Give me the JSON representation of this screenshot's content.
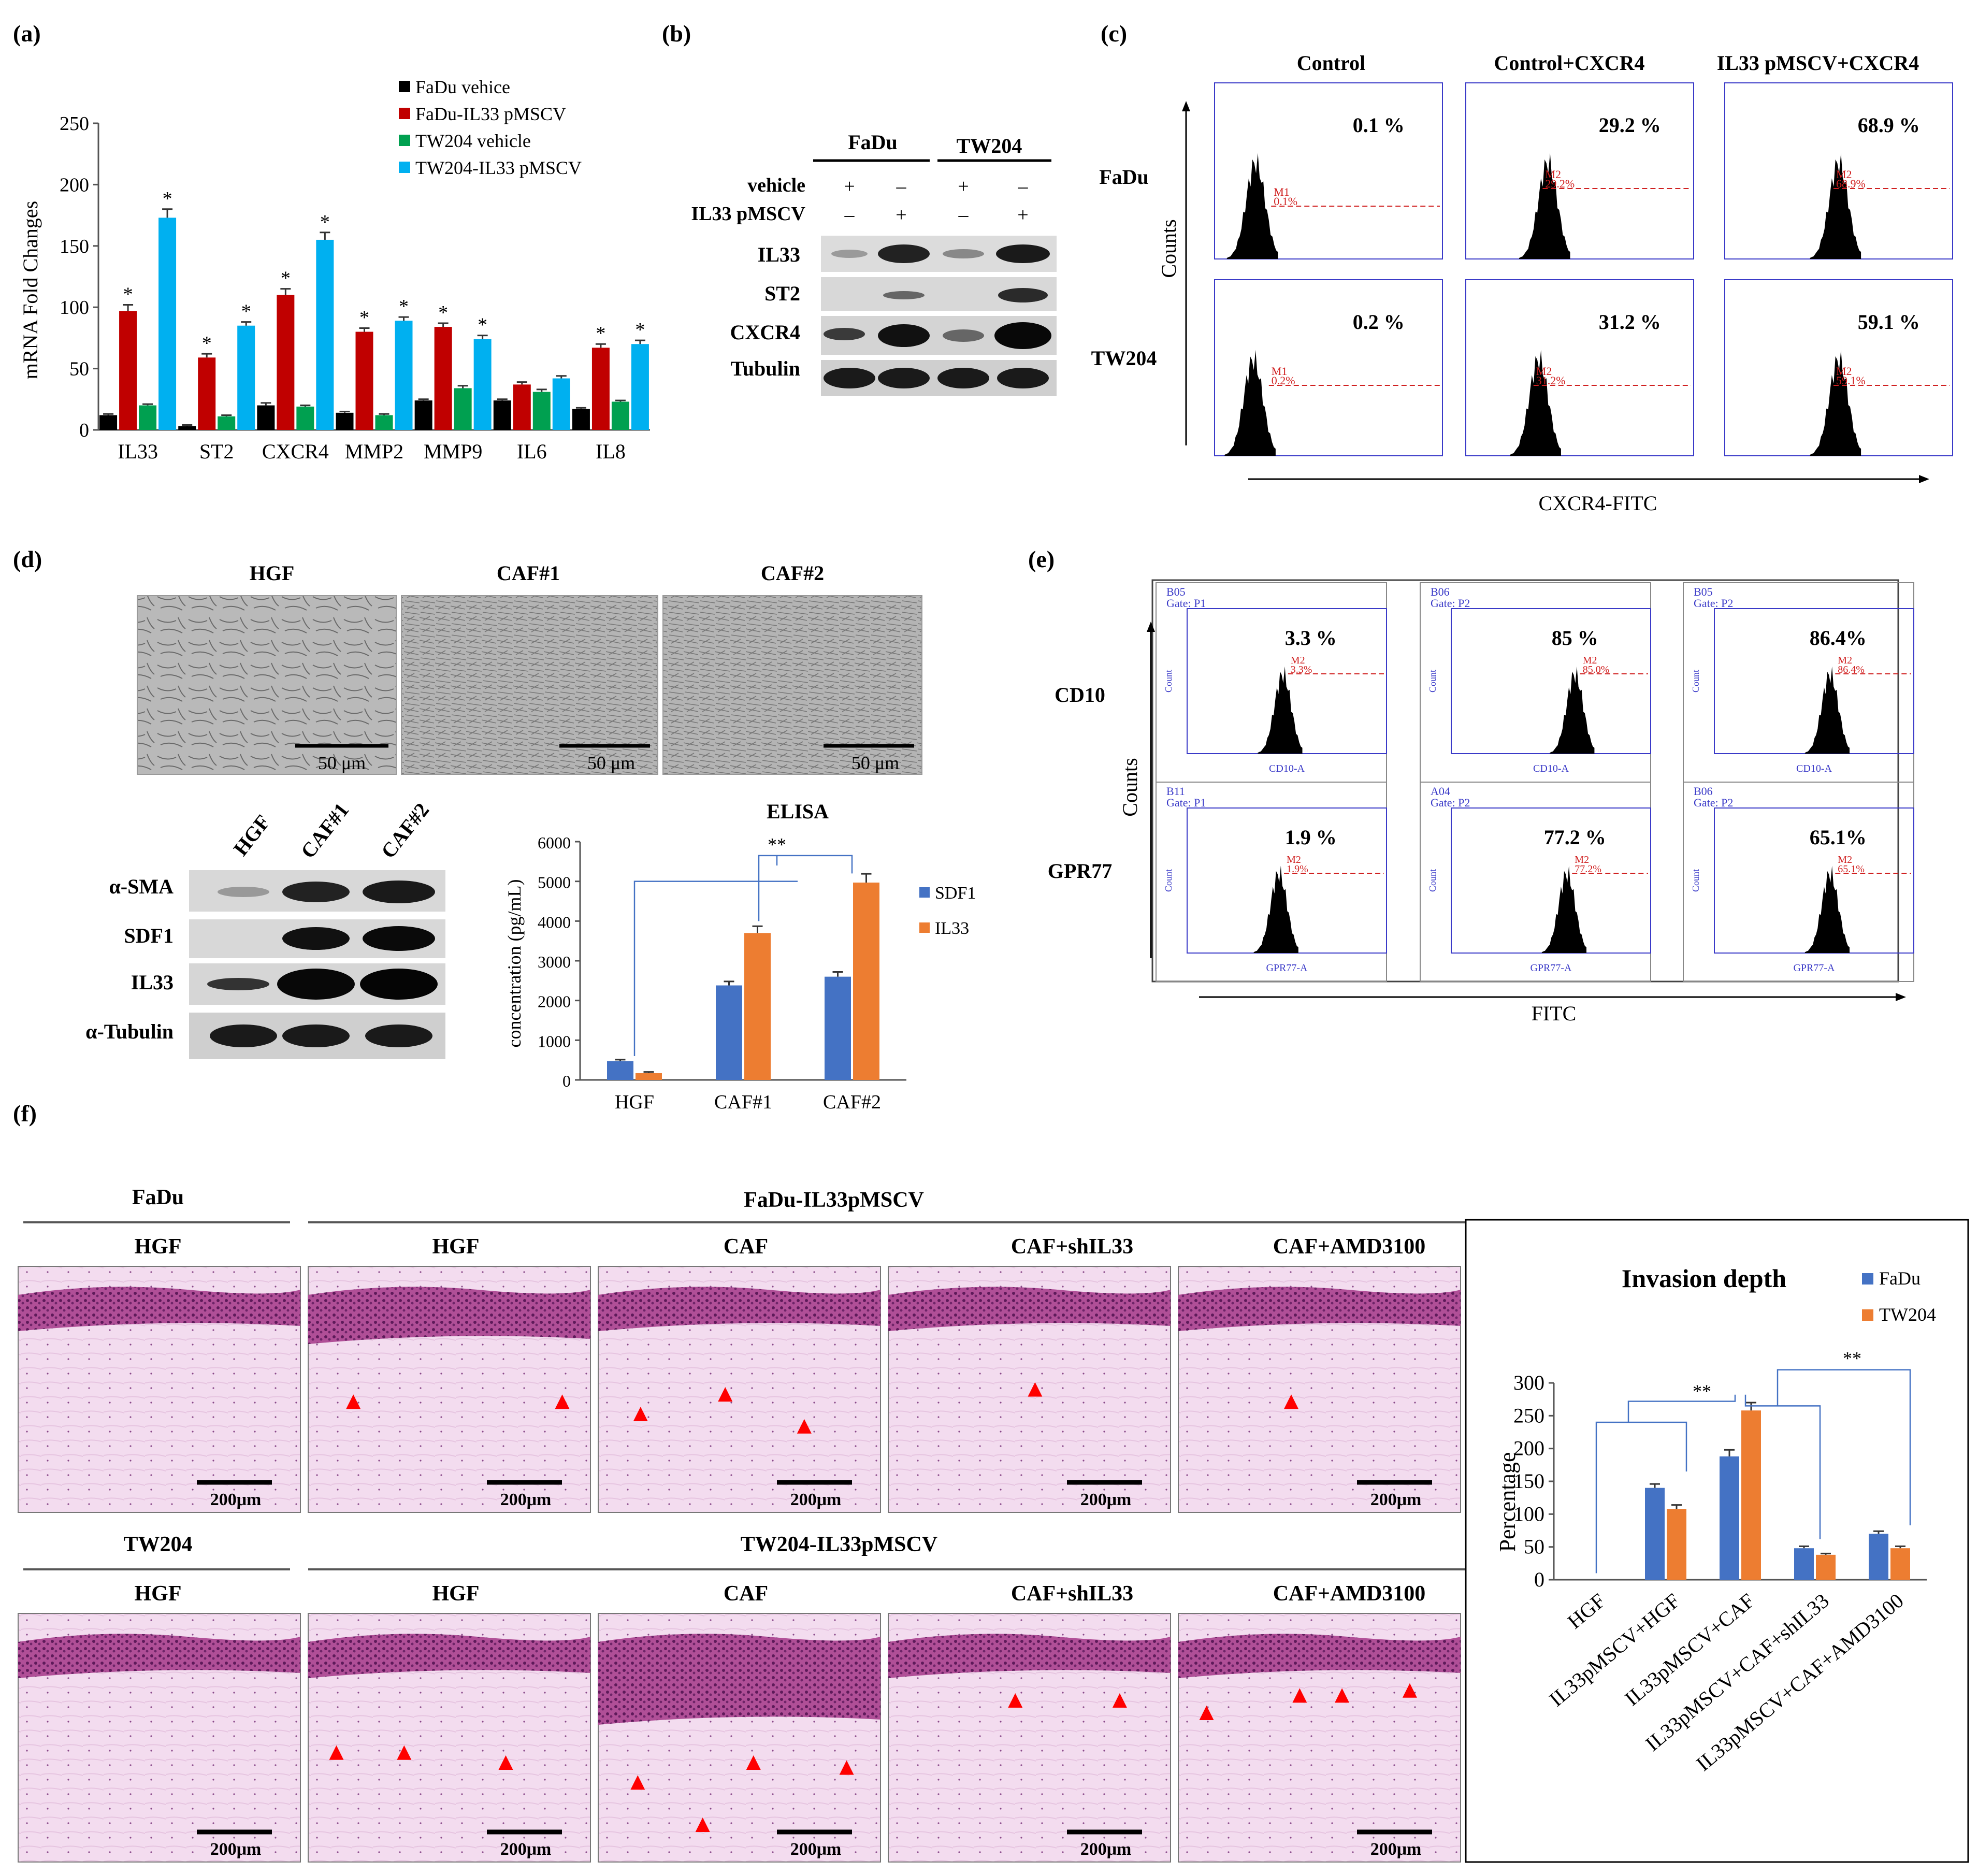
{
  "panel_labels": {
    "a": "(a)",
    "b": "(b)",
    "c": "(c)",
    "d": "(d)",
    "e": "(e)",
    "f": "(f)"
  },
  "chart_data": [
    {
      "id": "a",
      "type": "bar",
      "ylabel": "mRNA Fold Changes",
      "ylim": [
        0,
        250
      ],
      "yticks": [
        0,
        50,
        100,
        150,
        200,
        250
      ],
      "categories": [
        "IL33",
        "ST2",
        "CXCR4",
        "MMP2",
        "MMP9",
        "IL6",
        "IL8"
      ],
      "series": [
        {
          "name": "FaDu vehice",
          "color": "#000000",
          "values": [
            12,
            3,
            20,
            14,
            24,
            24,
            17
          ],
          "errors": [
            1,
            1,
            2,
            1,
            1,
            1,
            1
          ],
          "sig": [
            false,
            false,
            false,
            false,
            false,
            false,
            false
          ]
        },
        {
          "name": "FaDu-IL33 pMSCV",
          "color": "#c00000",
          "values": [
            97,
            59,
            110,
            80,
            84,
            37,
            67
          ],
          "errors": [
            5,
            3,
            5,
            3,
            3,
            2,
            3
          ],
          "sig": [
            true,
            true,
            true,
            true,
            true,
            false,
            true
          ]
        },
        {
          "name": "TW204 vehicle",
          "color": "#00a050",
          "values": [
            20,
            11,
            19,
            12,
            34,
            31,
            23
          ],
          "errors": [
            1,
            1,
            1,
            1,
            2,
            2,
            1
          ],
          "sig": [
            false,
            false,
            false,
            false,
            false,
            false,
            false
          ]
        },
        {
          "name": "TW204-IL33 pMSCV",
          "color": "#00b0f0",
          "values": [
            173,
            85,
            155,
            89,
            74,
            42,
            70
          ],
          "errors": [
            7,
            3,
            6,
            3,
            3,
            2,
            3
          ],
          "sig": [
            true,
            true,
            true,
            true,
            true,
            false,
            true
          ]
        }
      ],
      "star": "*"
    },
    {
      "id": "d",
      "type": "bar",
      "title": "ELISA",
      "ylabel": "concentration (pg/mL)",
      "ylim": [
        0,
        6000
      ],
      "yticks": [
        0,
        1000,
        2000,
        3000,
        4000,
        5000,
        6000
      ],
      "categories": [
        "HGF",
        "CAF#1",
        "CAF#2"
      ],
      "series": [
        {
          "name": "SDF1",
          "color": "#4472c4",
          "values": [
            470,
            2380,
            2600
          ],
          "errors": [
            40,
            100,
            120
          ]
        },
        {
          "name": "IL33",
          "color": "#ed7d31",
          "values": [
            170,
            3700,
            4970
          ],
          "errors": [
            30,
            170,
            220
          ]
        }
      ],
      "significance": "**"
    },
    {
      "id": "f",
      "type": "bar",
      "title": "Invasion depth",
      "ylabel": "Percentage",
      "ylim": [
        0,
        300
      ],
      "yticks": [
        0,
        50,
        100,
        150,
        200,
        250,
        300
      ],
      "categories": [
        "HGF",
        "IL33pMSCV+HGF",
        "IL33pMSCV+CAF",
        "IL33pMSCV+CAF+shIL33",
        "IL33pMSCV+CAF+AMD3100"
      ],
      "series": [
        {
          "name": "FaDu",
          "color": "#4472c4",
          "values": [
            0,
            140,
            188,
            48,
            70
          ],
          "errors": [
            0,
            6,
            10,
            3,
            4
          ]
        },
        {
          "name": "TW204",
          "color": "#ed7d31",
          "values": [
            0,
            108,
            258,
            38,
            48
          ],
          "errors": [
            0,
            6,
            12,
            2,
            3
          ]
        }
      ],
      "significance": [
        "**",
        "**"
      ]
    }
  ],
  "panel_b": {
    "groups": [
      "FaDu",
      "TW204"
    ],
    "rows": [
      {
        "label": "vehicle",
        "marks": [
          "+",
          "–",
          "+",
          "–"
        ]
      },
      {
        "label": "IL33 pMSCV",
        "marks": [
          "–",
          "+",
          "–",
          "+"
        ]
      }
    ],
    "blots": [
      "IL33",
      "ST2",
      "CXCR4",
      "Tubulin"
    ]
  },
  "panel_c": {
    "columns": [
      "Control",
      "Control+CXCR4",
      "IL33 pMSCV+CXCR4"
    ],
    "rows": [
      "FaDu",
      "TW204"
    ],
    "percents": [
      "0.1 %",
      "29.2 %",
      "68.9 %",
      "0.2 %",
      "31.2 %",
      "59.1 %"
    ],
    "gates": [
      "M1",
      "M2",
      "M2",
      "M1",
      "M2",
      "M2"
    ],
    "gate_pcts": [
      "0.1%",
      "29.2%",
      "68.9%",
      "0.2%",
      "31.2%",
      "59.1%"
    ],
    "peaks": [
      0.18,
      0.36,
      0.5,
      0.17,
      0.32,
      0.5
    ],
    "ylabel": "Counts",
    "xlabel": "CXCR4-FITC"
  },
  "panel_d": {
    "images": [
      "HGF",
      "CAF#1",
      "CAF#2"
    ],
    "scale": "50 μm",
    "blot_lanes": [
      "HGF",
      "CAF#1",
      "CAF#2"
    ],
    "blots": [
      "α-SMA",
      "SDF1",
      "IL33",
      "α-Tubulin"
    ]
  },
  "panel_e": {
    "rows": [
      "CD10",
      "GPR77"
    ],
    "percents": [
      "3.3 %",
      "85 %",
      "86.4%",
      "1.9 %",
      "77.2 %",
      "65.1%"
    ],
    "wells": [
      "B05",
      "B06",
      "B05",
      "B11",
      "A04",
      "B06"
    ],
    "gate_labels": [
      "Gate: P1",
      "Gate: P2",
      "Gate: P2",
      "Gate: P1",
      "Gate: P2",
      "Gate: P2"
    ],
    "gate_pcts": [
      "3.3%",
      "85.0%",
      "86.4%",
      "1.9%",
      "77.2%",
      "65.1%"
    ],
    "axis_labels": [
      "CD10-A",
      "CD10-A",
      "CD10-A",
      "GPR77-A",
      "GPR77-A",
      "GPR77-A"
    ],
    "ylabel": "Counts",
    "xlabel": "FITC",
    "count_label": "Count"
  },
  "panel_f": {
    "row1": {
      "ctrl_group": "FaDu",
      "group": "FaDu-IL33pMSCV"
    },
    "row2": {
      "ctrl_group": "TW204",
      "group": "TW204-IL33pMSCV"
    },
    "conditions": [
      "HGF",
      "HGF",
      "CAF",
      "CAF+shIL33",
      "CAF+AMD3100"
    ],
    "scale": "200μm"
  }
}
